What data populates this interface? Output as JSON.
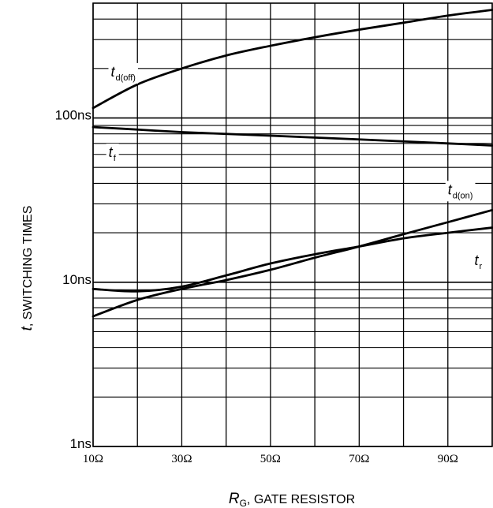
{
  "chart_data": {
    "type": "line",
    "xlabel": {
      "symbol": "R",
      "subscript": "G",
      "text": ", GATE RESISTOR"
    },
    "ylabel": {
      "symbol": "t",
      "text": ", SWITCHING TIMES"
    },
    "x_scale": "linear",
    "y_scale": "log",
    "xlim": [
      10,
      100
    ],
    "ylim": [
      1,
      500
    ],
    "x_ticks": [
      {
        "value": 10,
        "label": "10Ω"
      },
      {
        "value": 30,
        "label": "30Ω"
      },
      {
        "value": 50,
        "label": "50Ω"
      },
      {
        "value": 70,
        "label": "70Ω"
      },
      {
        "value": 90,
        "label": "90Ω"
      }
    ],
    "y_ticks": [
      {
        "value": 1,
        "label": "1ns"
      },
      {
        "value": 10,
        "label": "10ns"
      },
      {
        "value": 100,
        "label": "100ns"
      }
    ],
    "grid": true,
    "series": [
      {
        "name": "td(off)",
        "label": {
          "sym": "t",
          "sub": "d(off)"
        },
        "x": [
          10,
          20,
          30,
          40,
          50,
          60,
          70,
          80,
          90,
          100
        ],
        "values": [
          115,
          160,
          200,
          240,
          275,
          310,
          345,
          380,
          420,
          455
        ]
      },
      {
        "name": "tf",
        "label": {
          "sym": "t",
          "sub": "f"
        },
        "x": [
          10,
          20,
          30,
          40,
          50,
          60,
          70,
          80,
          90,
          100
        ],
        "values": [
          88,
          85,
          82,
          80,
          78,
          76,
          74,
          72,
          70,
          68
        ]
      },
      {
        "name": "td(on)",
        "label": {
          "sym": "t",
          "sub": "d(on)"
        },
        "x": [
          10,
          20,
          30,
          40,
          50,
          60,
          70,
          80,
          90,
          100
        ],
        "values": [
          6.2,
          7.8,
          9.1,
          10.3,
          11.9,
          14.1,
          16.5,
          19.6,
          23.2,
          27.5
        ]
      },
      {
        "name": "tr",
        "label": {
          "sym": "t",
          "sub": "r"
        },
        "x": [
          10,
          20,
          30,
          40,
          50,
          60,
          70,
          80,
          90,
          100
        ],
        "values": [
          9.1,
          8.8,
          9.4,
          11.0,
          13.0,
          14.8,
          16.5,
          18.5,
          20.0,
          21.5
        ]
      }
    ]
  }
}
